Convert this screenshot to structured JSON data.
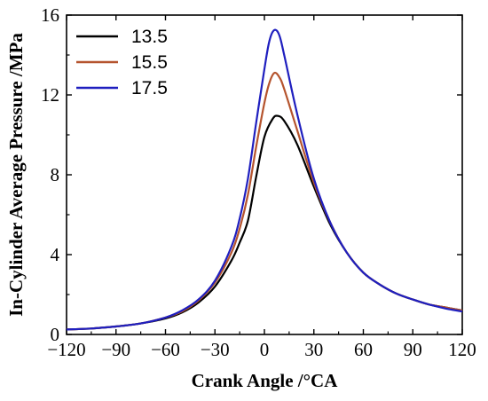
{
  "chart_data": {
    "type": "line",
    "title": "",
    "xlabel": "Crank Angle /°CA",
    "ylabel": "In-Cylinder Average Pressure /MPa",
    "xlim": [
      -120,
      120
    ],
    "ylim": [
      0,
      16
    ],
    "xticks": [
      -120,
      -90,
      -60,
      -30,
      0,
      30,
      60,
      90,
      120
    ],
    "yticks": [
      0,
      4,
      8,
      12,
      16
    ],
    "grid": false,
    "legend_position": "top-left",
    "series": [
      {
        "name": "13.5",
        "color": "#000000",
        "x": [
          -120,
          -105,
          -90,
          -75,
          -60,
          -50,
          -40,
          -30,
          -20,
          -15,
          -10,
          -5,
          0,
          5,
          8,
          12,
          20,
          30,
          40,
          50,
          60,
          70,
          80,
          90,
          100,
          110,
          120
        ],
        "y": [
          0.25,
          0.3,
          0.4,
          0.55,
          0.8,
          1.1,
          1.6,
          2.4,
          3.7,
          4.6,
          5.7,
          7.9,
          9.9,
          10.8,
          10.95,
          10.7,
          9.5,
          7.4,
          5.5,
          4.1,
          3.1,
          2.5,
          2.05,
          1.75,
          1.5,
          1.35,
          1.2
        ]
      },
      {
        "name": "15.5",
        "color": "#B5542E",
        "x": [
          -120,
          -105,
          -90,
          -75,
          -60,
          -50,
          -40,
          -30,
          -20,
          -15,
          -10,
          -5,
          0,
          3,
          6,
          9,
          12,
          20,
          30,
          40,
          50,
          60,
          70,
          80,
          90,
          100,
          110,
          120
        ],
        "y": [
          0.25,
          0.3,
          0.4,
          0.55,
          0.85,
          1.15,
          1.7,
          2.6,
          4.1,
          5.3,
          7.0,
          9.4,
          11.6,
          12.6,
          13.1,
          12.9,
          12.3,
          10.2,
          7.6,
          5.6,
          4.1,
          3.1,
          2.5,
          2.05,
          1.75,
          1.5,
          1.35,
          1.2
        ]
      },
      {
        "name": "17.5",
        "color": "#1F1FBF",
        "x": [
          -120,
          -105,
          -90,
          -75,
          -60,
          -50,
          -40,
          -30,
          -20,
          -15,
          -10,
          -5,
          0,
          3,
          6,
          9,
          12,
          20,
          30,
          40,
          50,
          60,
          70,
          80,
          90,
          100,
          110,
          120
        ],
        "y": [
          0.25,
          0.3,
          0.4,
          0.55,
          0.85,
          1.2,
          1.75,
          2.7,
          4.4,
          5.8,
          7.8,
          10.6,
          13.3,
          14.7,
          15.25,
          15.0,
          14.0,
          11.0,
          7.8,
          5.6,
          4.1,
          3.1,
          2.5,
          2.05,
          1.75,
          1.5,
          1.3,
          1.15
        ]
      }
    ]
  }
}
